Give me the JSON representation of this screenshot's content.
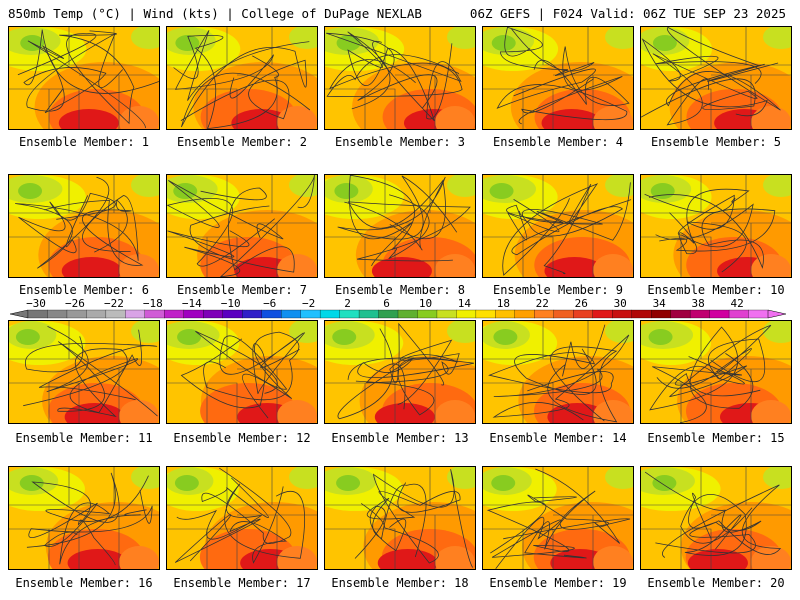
{
  "header": {
    "left_title": "850mb Temp (°C) | Wind (kts) | College of DuPage NEXLAB",
    "right_title": "06Z GEFS | F024 Valid: 06Z TUE SEP 23 2025"
  },
  "caption_prefix": "Ensemble Member:",
  "members": [
    {
      "caption": "Ensemble Member: 1"
    },
    {
      "caption": "Ensemble Member: 2"
    },
    {
      "caption": "Ensemble Member: 3"
    },
    {
      "caption": "Ensemble Member: 4"
    },
    {
      "caption": "Ensemble Member: 5"
    },
    {
      "caption": "Ensemble Member: 6"
    },
    {
      "caption": "Ensemble Member: 7"
    },
    {
      "caption": "Ensemble Member: 8"
    },
    {
      "caption": "Ensemble Member: 9"
    },
    {
      "caption": "Ensemble Member: 10"
    },
    {
      "caption": "Ensemble Member: 11"
    },
    {
      "caption": "Ensemble Member: 12"
    },
    {
      "caption": "Ensemble Member: 13"
    },
    {
      "caption": "Ensemble Member: 14"
    },
    {
      "caption": "Ensemble Member: 15"
    },
    {
      "caption": "Ensemble Member: 16"
    },
    {
      "caption": "Ensemble Member: 17"
    },
    {
      "caption": "Ensemble Member: 18"
    },
    {
      "caption": "Ensemble Member: 19"
    },
    {
      "caption": "Ensemble Member: 20"
    }
  ],
  "colorbar": {
    "tick_labels": [
      "−30",
      "−26",
      "−22",
      "−18",
      "−14",
      "−10",
      "−6",
      "−2",
      "2",
      "6",
      "10",
      "14",
      "18",
      "22",
      "26",
      "30",
      "34",
      "38",
      "42"
    ],
    "colors": [
      "#777777",
      "#888888",
      "#999999",
      "#aaaaaa",
      "#bbbbbb",
      "#d9a3e6",
      "#d05bd6",
      "#c020c8",
      "#a000c0",
      "#7f00b8",
      "#5a00c0",
      "#3020c8",
      "#1050e0",
      "#1090f0",
      "#20c0ff",
      "#00d8e8",
      "#20e0c0",
      "#20c090",
      "#30a050",
      "#60b030",
      "#88cc20",
      "#c8e020",
      "#f0f000",
      "#ffe000",
      "#ffc000",
      "#ffa000",
      "#ff8020",
      "#f06020",
      "#e84020",
      "#e01818",
      "#c81010",
      "#b00808",
      "#900000",
      "#a00040",
      "#c00070",
      "#d000a0",
      "#e040d0",
      "#f070f0"
    ]
  }
}
